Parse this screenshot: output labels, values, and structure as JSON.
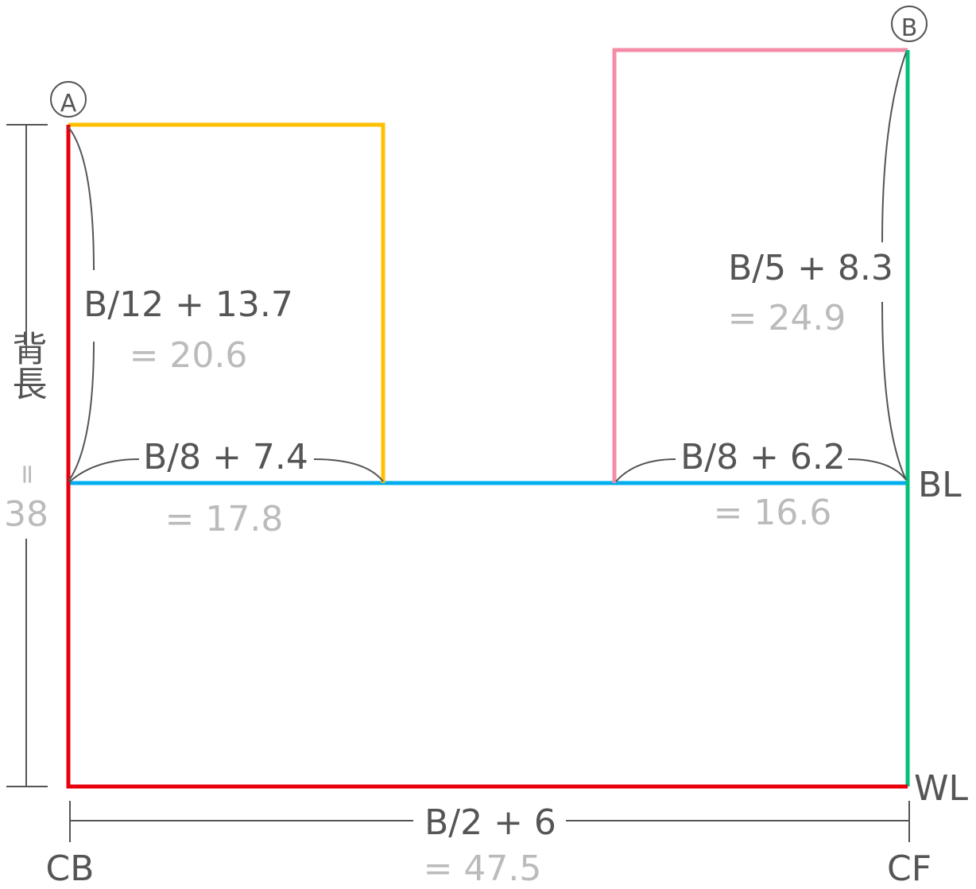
{
  "points": {
    "a": "A",
    "b": "B"
  },
  "back_width": {
    "formula": "B/12 + 13.7",
    "result": "= 20.6"
  },
  "back_chest": {
    "formula": "B/8 + 7.4",
    "result": "= 17.8"
  },
  "front_height": {
    "formula": "B/5 + 8.3",
    "result": "= 24.9"
  },
  "front_chest": {
    "formula": "B/8 + 6.2",
    "result": "= 16.6"
  },
  "total_width": {
    "formula": "B/2 + 6",
    "result": "= 47.5"
  },
  "back_length": {
    "label": "背長",
    "equals": "=",
    "value": "38"
  },
  "lines": {
    "bust": "BL",
    "waist": "WL",
    "center_back": "CB",
    "center_front": "CF"
  }
}
